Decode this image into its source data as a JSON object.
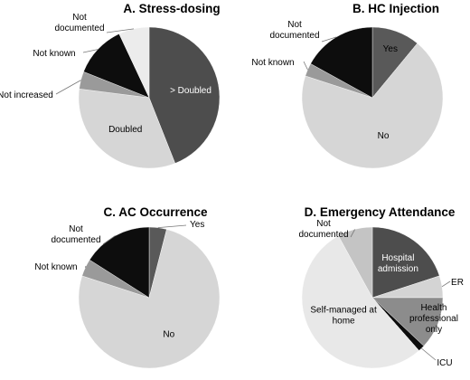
{
  "chart_data": [
    {
      "type": "pie",
      "title": "A. Stress-dosing",
      "slices": [
        {
          "label": "> Doubled",
          "value": 44,
          "color": "#4d4d4d",
          "label_color": "#ffffff"
        },
        {
          "label": "Doubled",
          "value": 33,
          "color": "#d6d6d6",
          "label_color": "#000000"
        },
        {
          "label": "Not increased",
          "value": 4,
          "color": "#9a9a9a",
          "label_color": "#000000"
        },
        {
          "label": "Not known",
          "value": 12,
          "color": "#0d0d0d",
          "label_color": "#000000"
        },
        {
          "label": "Not documented",
          "value": 7,
          "color": "#ececec",
          "label_color": "#000000"
        }
      ]
    },
    {
      "type": "pie",
      "title": "B. HC Injection",
      "slices": [
        {
          "label": "Yes",
          "value": 11,
          "color": "#595959",
          "label_color": "#000000"
        },
        {
          "label": "No",
          "value": 69,
          "color": "#d6d6d6",
          "label_color": "#000000"
        },
        {
          "label": "Not known",
          "value": 3,
          "color": "#9a9a9a",
          "label_color": "#000000"
        },
        {
          "label": "Not documented",
          "value": 17,
          "color": "#0d0d0d",
          "label_color": "#000000"
        }
      ]
    },
    {
      "type": "pie",
      "title": "C. AC Occurrence",
      "slices": [
        {
          "label": "Yes",
          "value": 4,
          "color": "#595959",
          "label_color": "#000000"
        },
        {
          "label": "No",
          "value": 76,
          "color": "#d6d6d6",
          "label_color": "#000000"
        },
        {
          "label": "Not known",
          "value": 4,
          "color": "#9a9a9a",
          "label_color": "#000000"
        },
        {
          "label": "Not documented",
          "value": 16,
          "color": "#0d0d0d",
          "label_color": "#000000"
        }
      ]
    },
    {
      "type": "pie",
      "title": "D. Emergency Attendance",
      "slices": [
        {
          "label": "Hospital admission",
          "value": 20,
          "color": "#4d4d4d",
          "label_color": "#ffffff"
        },
        {
          "label": "ER",
          "value": 5,
          "color": "#d4d4d4",
          "label_color": "#000000"
        },
        {
          "label": "Health professional only",
          "value": 12,
          "color": "#8c8c8c",
          "label_color": "#000000"
        },
        {
          "label": "ICU",
          "value": 1.5,
          "color": "#0d0d0d",
          "label_color": "#000000"
        },
        {
          "label": "Self-managed at home",
          "value": 53.5,
          "color": "#e8e8e8",
          "label_color": "#000000"
        },
        {
          "label": "Not documented",
          "value": 8,
          "color": "#c4c4c4",
          "label_color": "#000000"
        }
      ]
    }
  ]
}
